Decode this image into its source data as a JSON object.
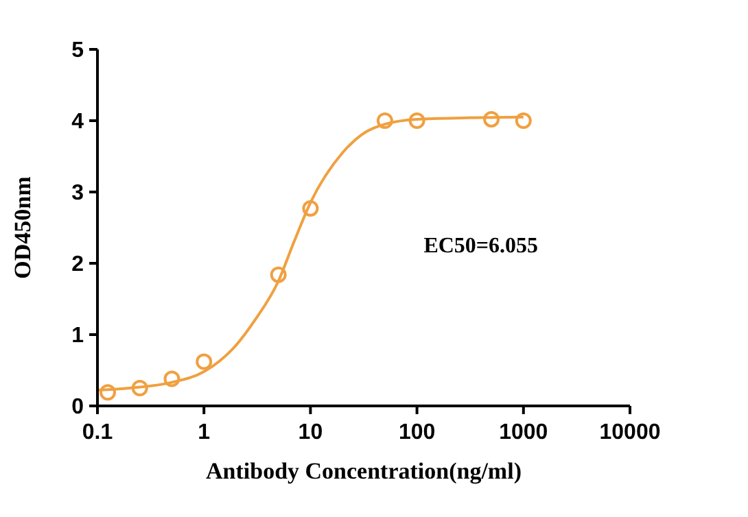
{
  "chart_data": {
    "type": "scatter",
    "xlabel": "Antibody Concentration(ng/ml)",
    "ylabel": "OD450nm",
    "log": "x",
    "xlim": [
      0.1,
      10000
    ],
    "xticks": [
      0.1,
      1,
      10,
      100,
      1000,
      10000
    ],
    "ylim": [
      0,
      5
    ],
    "yticks": [
      0,
      1,
      2,
      3,
      4,
      5
    ],
    "grid": false,
    "annotations": [
      "EC50=6.055"
    ],
    "series": [
      {
        "color": "#f0a040",
        "marker": "circle",
        "x": [
          0.125,
          0.25,
          0.5,
          1,
          5,
          10,
          50,
          100,
          500,
          1000
        ],
        "values": [
          0.19,
          0.25,
          0.38,
          0.62,
          1.84,
          2.77,
          4.0,
          4.0,
          4.02,
          4.0
        ]
      },
      {
        "type": "line",
        "color": "#f0a040",
        "marker": "none",
        "line_style": "solid",
        "x": [
          0.1,
          0.2,
          0.5,
          1,
          2,
          3,
          5,
          7,
          10,
          20,
          30,
          50,
          100,
          300,
          1000
        ],
        "values": [
          0.22,
          0.25,
          0.33,
          0.48,
          0.85,
          1.2,
          1.75,
          2.3,
          2.85,
          3.55,
          3.8,
          3.95,
          4.02,
          4.04,
          4.05
        ]
      }
    ]
  }
}
